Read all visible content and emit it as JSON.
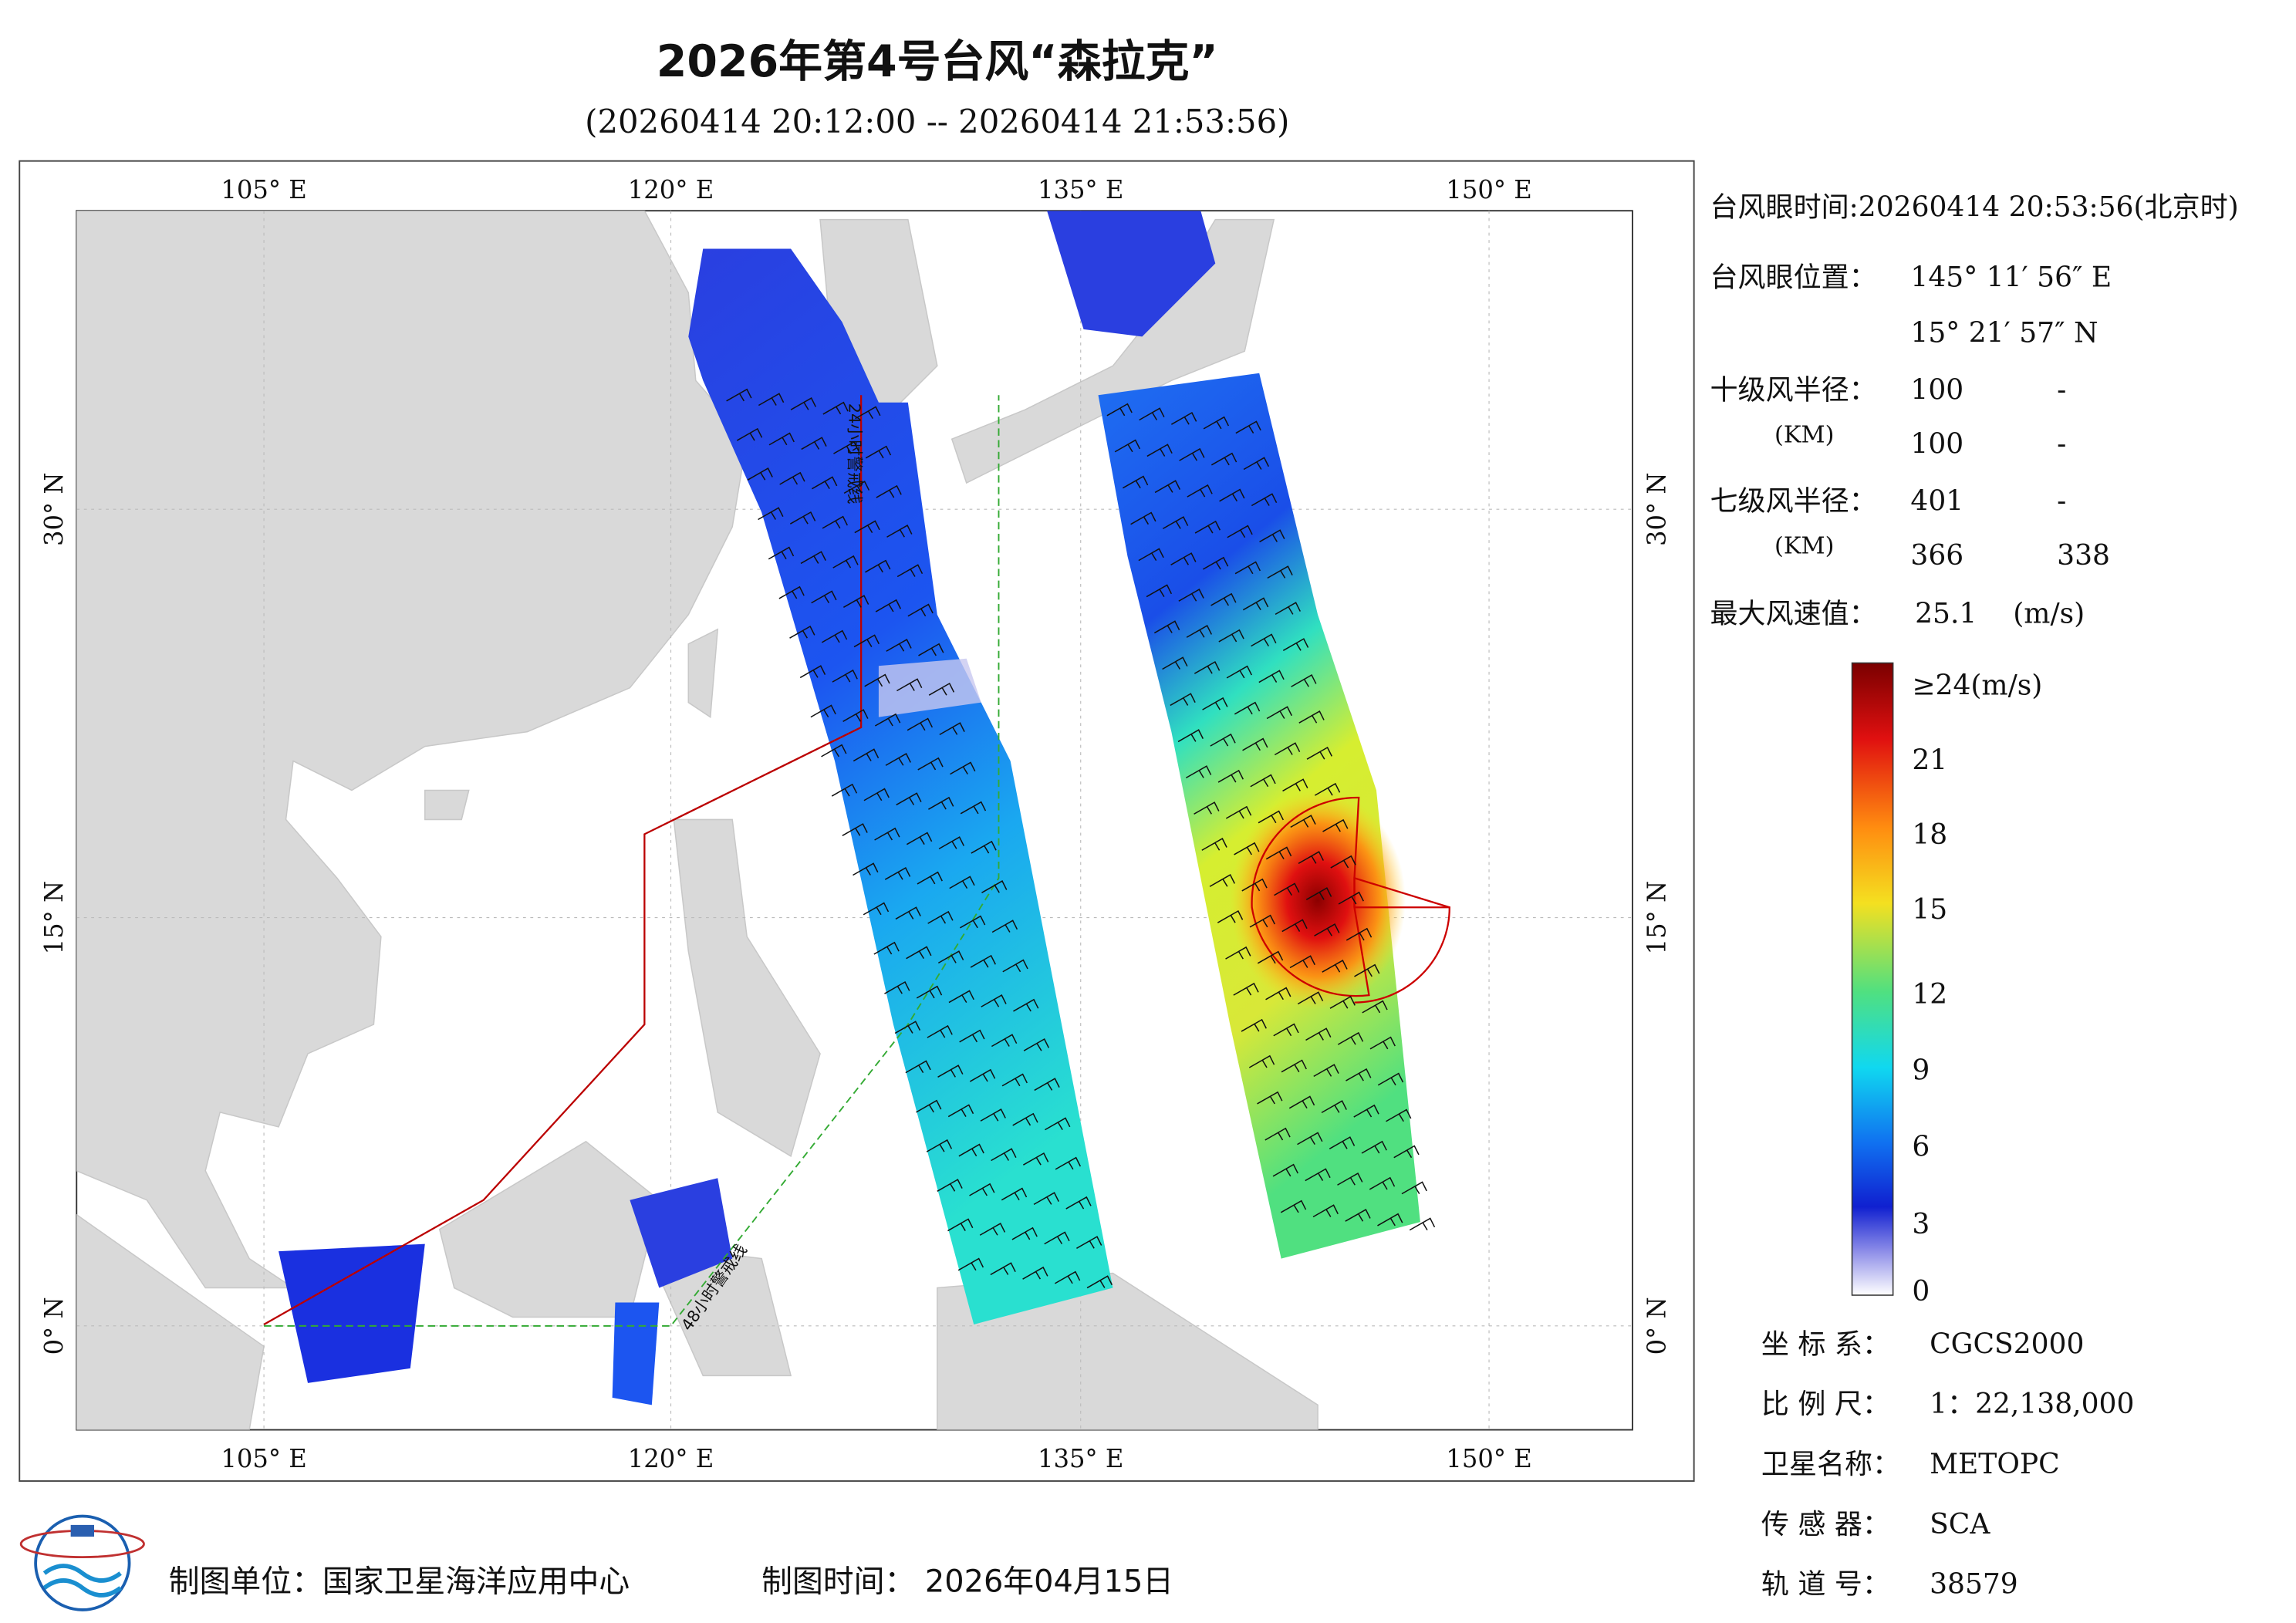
{
  "header": {
    "title": "2026年第4号台风“森拉克”",
    "subtitle": "(20260414 20:12:00 -- 20260414 21:53:56)"
  },
  "map": {
    "lon_labels": [
      "105° E",
      "120° E",
      "135° E",
      "150° E"
    ],
    "lat_labels": [
      "30° N",
      "15° N",
      "0° N"
    ],
    "warning_24h": "24小时警戒线",
    "warning_48h": "48小时警戒线"
  },
  "info": {
    "eye_time": "台风眼时间:20260414 20:53:56(北京时)",
    "eye_position": {
      "label": "台风眼位置：",
      "lon": "145° 11′ 56″ E",
      "lat": "15° 21′ 57″ N"
    },
    "r10": {
      "label": "十级风半径：",
      "unit": "(KM)",
      "values": [
        "100",
        "-",
        "100",
        "-"
      ]
    },
    "r7": {
      "label": "七级风半径：",
      "unit": "(KM)",
      "values": [
        "401",
        "-",
        "366",
        "338"
      ]
    },
    "max_wind": {
      "label": "最大风速值：",
      "value": "25.1",
      "unit": "(m/s)"
    }
  },
  "colorbar": {
    "labels": [
      "≥24(m/s)",
      "21",
      "18",
      "15",
      "12",
      "9",
      "6",
      "3",
      "0"
    ]
  },
  "meta": [
    {
      "label": "坐 标 系：",
      "value": "CGCS2000"
    },
    {
      "label": "比 例 尺：",
      "value": "1：22,138,000"
    },
    {
      "label": "卫星名称：",
      "value": "METOPC"
    },
    {
      "label": "传 感 器：",
      "value": "SCA"
    },
    {
      "label": "轨 道 号：",
      "value": "38579"
    }
  ],
  "footer": {
    "unit": "制图单位：国家卫星海洋应用中心",
    "time": "制图时间：  2026年04月15日"
  }
}
